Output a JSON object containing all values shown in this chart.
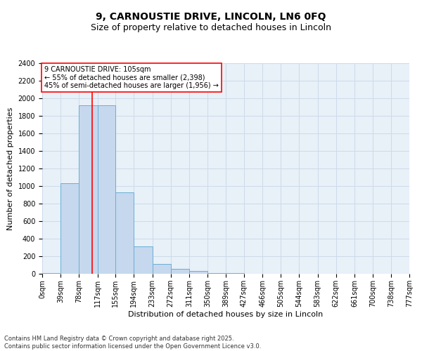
{
  "title": "9, CARNOUSTIE DRIVE, LINCOLN, LN6 0FQ",
  "subtitle": "Size of property relative to detached houses in Lincoln",
  "xlabel": "Distribution of detached houses by size in Lincoln",
  "ylabel": "Number of detached properties",
  "bar_edges": [
    0,
    39,
    78,
    117,
    155,
    194,
    233,
    272,
    311,
    350,
    389,
    427,
    466,
    505,
    544,
    583,
    622,
    661,
    700,
    738,
    777
  ],
  "bar_heights": [
    10,
    1030,
    1920,
    1920,
    930,
    310,
    110,
    60,
    30,
    10,
    5,
    3,
    2,
    2,
    1,
    1,
    1,
    1,
    1,
    1
  ],
  "bar_color": "#c5d8ee",
  "bar_edge_color": "#6baed6",
  "vline_x": 105,
  "vline_color": "red",
  "annotation_text": "9 CARNOUSTIE DRIVE: 105sqm\n← 55% of detached houses are smaller (2,398)\n45% of semi-detached houses are larger (1,956) →",
  "annotation_box_color": "red",
  "annotation_bg": "white",
  "ylim": [
    0,
    2400
  ],
  "yticks": [
    0,
    200,
    400,
    600,
    800,
    1000,
    1200,
    1400,
    1600,
    1800,
    2000,
    2200,
    2400
  ],
  "xtick_labels": [
    "0sqm",
    "39sqm",
    "78sqm",
    "117sqm",
    "155sqm",
    "194sqm",
    "233sqm",
    "272sqm",
    "311sqm",
    "350sqm",
    "389sqm",
    "427sqm",
    "466sqm",
    "505sqm",
    "544sqm",
    "583sqm",
    "622sqm",
    "661sqm",
    "700sqm",
    "738sqm",
    "777sqm"
  ],
  "grid_color": "#c8d8e8",
  "bg_color": "#e8f0f8",
  "footnote": "Contains HM Land Registry data © Crown copyright and database right 2025.\nContains public sector information licensed under the Open Government Licence v3.0.",
  "title_fontsize": 10,
  "subtitle_fontsize": 9,
  "label_fontsize": 8,
  "tick_fontsize": 7,
  "footnote_fontsize": 6,
  "annotation_fontsize": 7
}
